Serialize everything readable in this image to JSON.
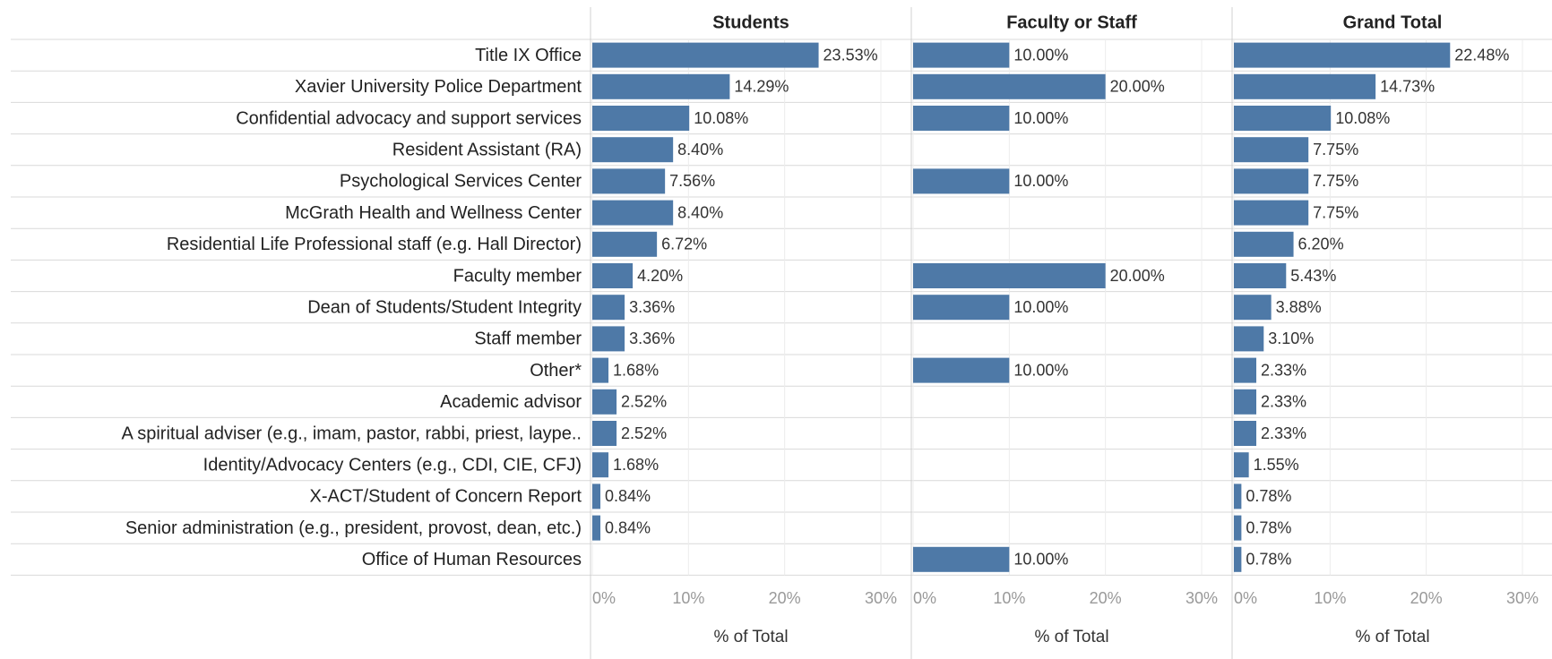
{
  "chart_data": {
    "type": "bar",
    "orientation": "horizontal",
    "color": "#4e79a7",
    "grid": true,
    "x_label": "% of Total",
    "categories": [
      "Title IX Office",
      "Xavier University Police Department",
      "Confidential advocacy and support services",
      "Resident Assistant (RA)",
      "Psychological Services Center",
      "McGrath Health and Wellness Center",
      "Residential Life Professional staff (e.g. Hall Director)",
      "Faculty member",
      "Dean of Students/Student Integrity",
      "Staff member",
      "Other*",
      "Academic advisor",
      "A spiritual adviser (e.g., imam, pastor, rabbi, priest, laype..",
      "Identity/Advocacy Centers (e.g., CDI, CIE, CFJ)",
      "X-ACT/Student of Concern Report",
      "Senior administration (e.g., president, provost, dean, etc.)",
      "Office of Human Resources"
    ],
    "series": [
      {
        "name": "Students",
        "values": [
          23.53,
          14.29,
          10.08,
          8.4,
          7.56,
          8.4,
          6.72,
          4.2,
          3.36,
          3.36,
          1.68,
          2.52,
          2.52,
          1.68,
          0.84,
          0.84,
          null
        ],
        "value_labels": [
          "23.53%",
          "14.29%",
          "10.08%",
          "8.40%",
          "7.56%",
          "8.40%",
          "6.72%",
          "4.20%",
          "3.36%",
          "3.36%",
          "1.68%",
          "2.52%",
          "2.52%",
          "1.68%",
          "0.84%",
          "0.84%",
          null
        ]
      },
      {
        "name": "Faculty or Staff",
        "values": [
          10.0,
          20.0,
          10.0,
          null,
          10.0,
          null,
          null,
          20.0,
          10.0,
          null,
          10.0,
          null,
          null,
          null,
          null,
          null,
          10.0
        ],
        "value_labels": [
          "10.00%",
          "20.00%",
          "10.00%",
          null,
          "10.00%",
          null,
          null,
          "20.00%",
          "10.00%",
          null,
          "10.00%",
          null,
          null,
          null,
          null,
          null,
          "10.00%"
        ]
      },
      {
        "name": "Grand Total",
        "values": [
          22.48,
          14.73,
          10.08,
          7.75,
          7.75,
          7.75,
          6.2,
          5.43,
          3.88,
          3.1,
          2.33,
          2.33,
          2.33,
          1.55,
          0.78,
          0.78,
          0.78
        ],
        "value_labels": [
          "22.48%",
          "14.73%",
          "10.08%",
          "7.75%",
          "7.75%",
          "7.75%",
          "6.20%",
          "5.43%",
          "3.88%",
          "3.10%",
          "2.33%",
          "2.33%",
          "2.33%",
          "1.55%",
          "0.78%",
          "0.78%",
          "0.78%"
        ]
      }
    ],
    "xlim": [
      0,
      30
    ],
    "xticks": [
      {
        "value": 0,
        "label": "0%"
      },
      {
        "value": 10,
        "label": "10%"
      },
      {
        "value": 20,
        "label": "20%"
      },
      {
        "value": 30,
        "label": "30%"
      }
    ]
  }
}
